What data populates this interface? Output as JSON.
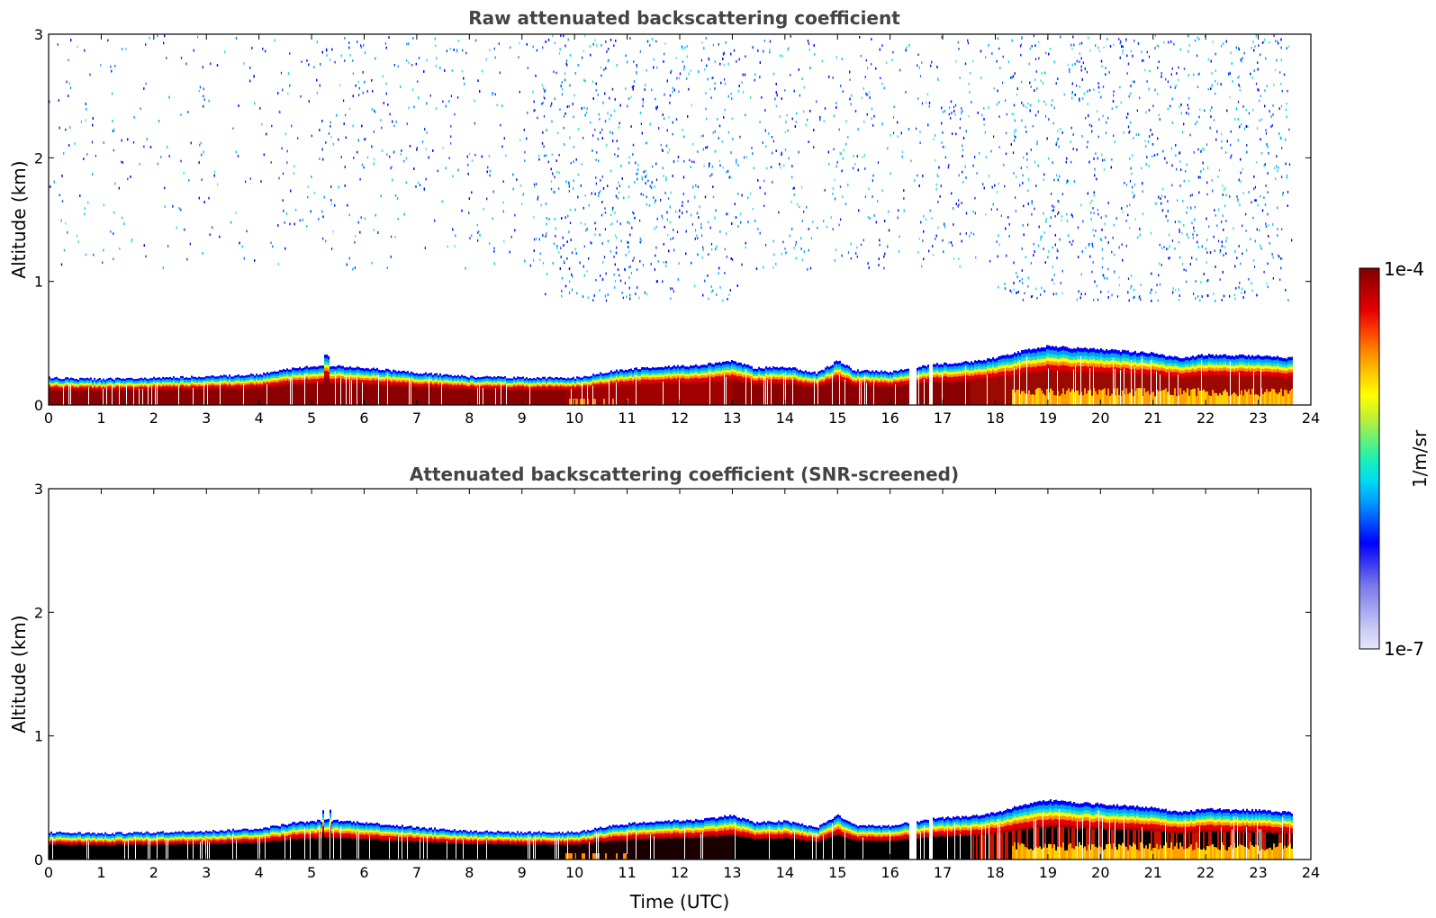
{
  "chart_data": [
    {
      "type": "heatmap",
      "title": "Raw attenuated backscattering coefficient",
      "xlabel": "",
      "ylabel": "Altitude (km)",
      "xlim": [
        0,
        24
      ],
      "ylim": [
        0,
        3
      ],
      "xticks": [
        0,
        1,
        2,
        3,
        4,
        5,
        6,
        7,
        8,
        9,
        10,
        11,
        12,
        13,
        14,
        15,
        16,
        17,
        18,
        19,
        20,
        21,
        22,
        23,
        24
      ],
      "yticks": [
        0,
        1,
        2,
        3
      ],
      "data_end_time": 23.65,
      "boundary_layer_top_km": {
        "time": [
          0,
          1,
          2,
          3,
          4,
          4.7,
          5.3,
          6,
          7,
          8,
          9,
          10,
          10.8,
          11.5,
          12.3,
          13,
          13.4,
          14,
          14.6,
          15,
          15.3,
          16,
          16.4,
          16.8,
          17.5,
          18,
          18.5,
          19,
          19.5,
          20,
          21,
          21.5,
          22,
          22.5,
          23,
          23.65
        ],
        "value": [
          0.22,
          0.21,
          0.22,
          0.23,
          0.25,
          0.3,
          0.32,
          0.3,
          0.26,
          0.23,
          0.22,
          0.22,
          0.28,
          0.31,
          0.32,
          0.36,
          0.3,
          0.31,
          0.26,
          0.36,
          0.28,
          0.27,
          0.3,
          0.33,
          0.35,
          0.38,
          0.44,
          0.48,
          0.46,
          0.45,
          0.42,
          0.38,
          0.41,
          0.4,
          0.4,
          0.38
        ]
      },
      "noise_field": "scattered weak returns above ~0.8-1 km, densest 9.5-13 h and 18-23.6 h"
    },
    {
      "type": "heatmap",
      "title": "Attenuated backscattering coefficient (SNR-screened)",
      "xlabel": "Time (UTC)",
      "ylabel": "Altitude (km)",
      "xlim": [
        0,
        24
      ],
      "ylim": [
        0,
        3
      ],
      "xticks": [
        0,
        1,
        2,
        3,
        4,
        5,
        6,
        7,
        8,
        9,
        10,
        11,
        12,
        13,
        14,
        15,
        16,
        17,
        18,
        19,
        20,
        21,
        22,
        23,
        24
      ],
      "yticks": [
        0,
        1,
        2,
        3
      ],
      "data_end_time": 23.65,
      "boundary_layer_top_km": {
        "time": [
          0,
          1,
          2,
          3,
          4,
          4.7,
          5.3,
          6,
          7,
          8,
          9,
          10,
          10.8,
          11.5,
          12.3,
          13,
          13.4,
          14,
          14.6,
          15,
          15.3,
          16,
          16.4,
          16.8,
          17.5,
          18,
          18.5,
          19,
          19.5,
          20,
          21,
          21.5,
          22,
          22.5,
          23,
          23.65
        ],
        "value": [
          0.22,
          0.21,
          0.22,
          0.23,
          0.25,
          0.3,
          0.32,
          0.3,
          0.26,
          0.23,
          0.22,
          0.22,
          0.28,
          0.31,
          0.32,
          0.36,
          0.3,
          0.31,
          0.26,
          0.36,
          0.28,
          0.27,
          0.3,
          0.33,
          0.35,
          0.38,
          0.44,
          0.48,
          0.46,
          0.45,
          0.42,
          0.38,
          0.41,
          0.4,
          0.4,
          0.38
        ]
      },
      "noise_field": "none (screened)"
    }
  ],
  "colorbar": {
    "label": "1/m/sr",
    "max_label": "1e-4",
    "min_label": "1e-7",
    "colors": [
      "#e6e6fa",
      "#c8c8f5",
      "#a0a0f0",
      "#7878eb",
      "#3c3cf0",
      "#0000ff",
      "#0050ff",
      "#00a0ff",
      "#00dcf0",
      "#20f0b4",
      "#70f070",
      "#c8f030",
      "#ffff00",
      "#ffc800",
      "#ff8c00",
      "#ff4000",
      "#e60000",
      "#b40000",
      "#800000"
    ]
  }
}
